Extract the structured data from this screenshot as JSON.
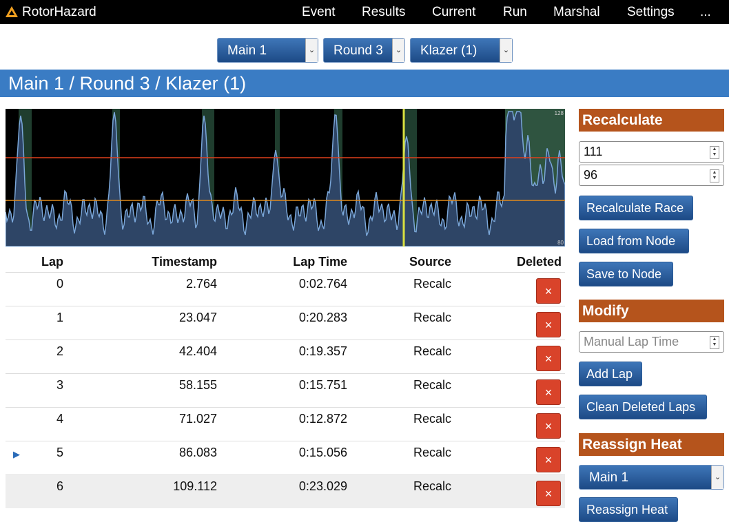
{
  "nav": {
    "brand": "RotorHazard",
    "items": [
      "Event",
      "Results",
      "Current",
      "Run",
      "Marshal",
      "Settings",
      "..."
    ]
  },
  "selectors": [
    "Main 1",
    "Round 3",
    "Klazer (1)"
  ],
  "heading": "Main 1 / Round 3 / Klazer (1)",
  "graph": {
    "max_label": "128",
    "min_label": "80"
  },
  "table": {
    "columns": [
      "Lap",
      "Timestamp",
      "Lap Time",
      "Source",
      "Deleted"
    ],
    "rows": [
      [
        "0",
        "2.764",
        "0:02.764",
        "Recalc"
      ],
      [
        "1",
        "23.047",
        "0:20.283",
        "Recalc"
      ],
      [
        "2",
        "42.404",
        "0:19.357",
        "Recalc"
      ],
      [
        "3",
        "58.155",
        "0:15.751",
        "Recalc"
      ],
      [
        "4",
        "71.027",
        "0:12.872",
        "Recalc"
      ],
      [
        "5",
        "86.083",
        "0:15.056",
        "Recalc"
      ],
      [
        "6",
        "109.112",
        "0:23.029",
        "Recalc"
      ]
    ],
    "current_row": 5,
    "delete_label": "×"
  },
  "sidebar": {
    "recalculate": {
      "title": "Recalculate",
      "inputs": [
        "111",
        "96"
      ],
      "buttons": [
        "Recalculate Race",
        "Load from Node",
        "Save to Node"
      ]
    },
    "modify": {
      "title": "Modify",
      "placeholder": "Manual Lap Time",
      "buttons": [
        "Add Lap",
        "Clean Deleted Laps"
      ]
    },
    "reassign": {
      "title": "Reassign Heat",
      "select": "Main 1",
      "button": "Reassign Heat"
    }
  }
}
